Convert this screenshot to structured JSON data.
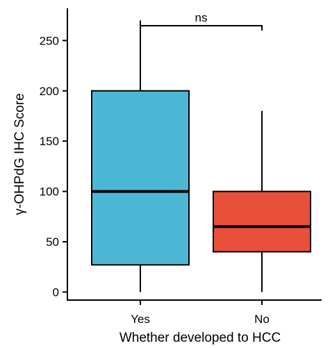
{
  "chart_data": {
    "type": "boxplot",
    "xlabel": "Whether developed to HCC",
    "ylabel": "γ-OHPdG IHC Score",
    "ylim": [
      -8,
      282
    ],
    "yticks": [
      0,
      50,
      100,
      150,
      200,
      250
    ],
    "categories": [
      "Yes",
      "No"
    ],
    "boxes": [
      {
        "category": "Yes",
        "min": 0,
        "q1": 27,
        "median": 100,
        "q3": 200,
        "max": 270,
        "color": "#4db8d6"
      },
      {
        "category": "No",
        "min": 0,
        "q1": 40,
        "median": 65,
        "q3": 100,
        "max": 180,
        "color": "#e8503a"
      }
    ],
    "significance": {
      "label": "ns",
      "from": "Yes",
      "to": "No"
    },
    "legend": "none",
    "grid": false
  }
}
